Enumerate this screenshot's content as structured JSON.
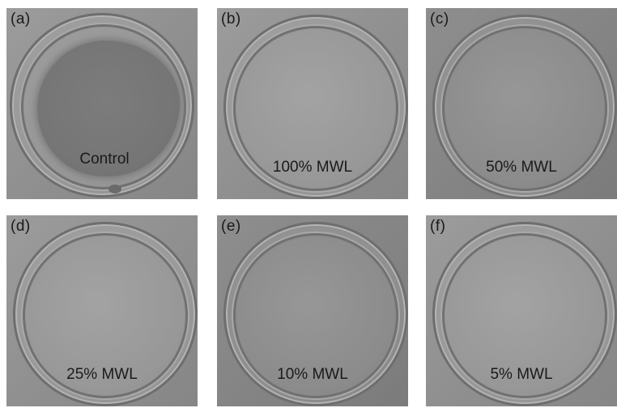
{
  "figure": {
    "panels": [
      {
        "letter": "(a)",
        "caption": "Control"
      },
      {
        "letter": "(b)",
        "caption": "100% MWL"
      },
      {
        "letter": "(c)",
        "caption": "50% MWL"
      },
      {
        "letter": "(d)",
        "caption": "25% MWL"
      },
      {
        "letter": "(e)",
        "caption": "10% MWL"
      },
      {
        "letter": "(f)",
        "caption": "5% MWL"
      }
    ]
  }
}
